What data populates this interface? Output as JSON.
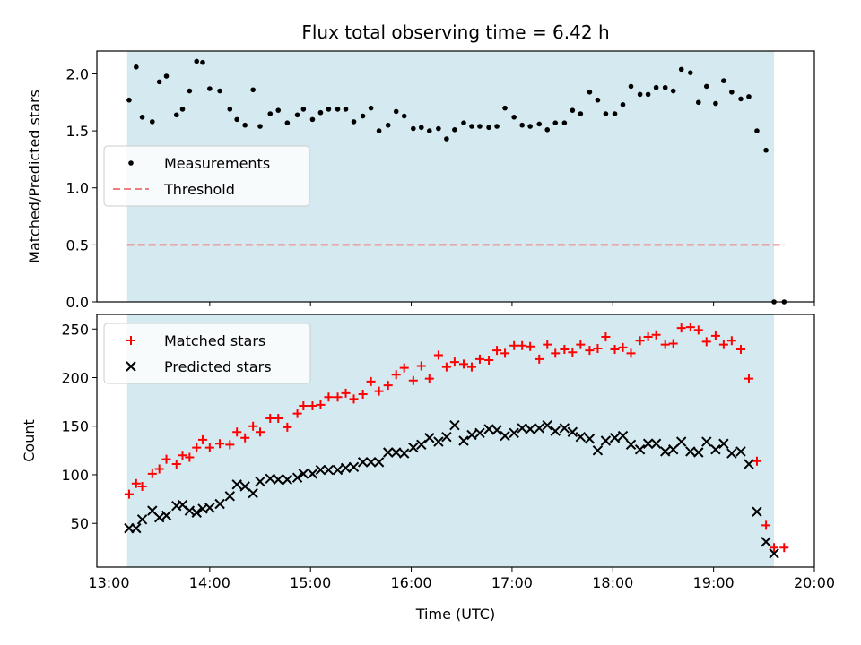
{
  "title": "Flux total observing time = 6.42 h",
  "x_axis_label": "Time (UTC)",
  "x_ticks": [
    "13:00",
    "14:00",
    "15:00",
    "16:00",
    "17:00",
    "18:00",
    "19:00",
    "20:00"
  ],
  "colors": {
    "observing_window": "#d4eaf0",
    "measurements": "#000000",
    "threshold": "#f08080",
    "matched": "#ff0000",
    "predicted": "#000000"
  },
  "chart_data": [
    {
      "type": "scatter",
      "ylabel": "Matched/Predicted stars",
      "xlim": [
        12.88,
        20.0
      ],
      "ylim": [
        0.0,
        2.2
      ],
      "yticks": [
        "0.0",
        "0.5",
        "1.0",
        "1.5",
        "2.0"
      ],
      "shaded_span": [
        13.18,
        19.6
      ],
      "legend": {
        "placement": "center-left",
        "entries": [
          "Measurements",
          "Threshold"
        ]
      },
      "threshold": {
        "name": "Threshold",
        "value": 0.5,
        "x_range": [
          13.18,
          19.7
        ],
        "style": "dashed"
      },
      "series": [
        {
          "name": "Measurements",
          "marker": "dot",
          "x": [
            13.2,
            13.27,
            13.33,
            13.43,
            13.5,
            13.57,
            13.67,
            13.73,
            13.8,
            13.87,
            13.93,
            14.0,
            14.1,
            14.2,
            14.27,
            14.35,
            14.43,
            14.5,
            14.6,
            14.68,
            14.77,
            14.87,
            14.93,
            15.02,
            15.1,
            15.18,
            15.27,
            15.35,
            15.43,
            15.52,
            15.6,
            15.68,
            15.77,
            15.85,
            15.93,
            16.02,
            16.1,
            16.18,
            16.27,
            16.35,
            16.43,
            16.52,
            16.6,
            16.68,
            16.77,
            16.85,
            16.93,
            17.02,
            17.1,
            17.18,
            17.27,
            17.35,
            17.43,
            17.52,
            17.6,
            17.68,
            17.77,
            17.85,
            17.93,
            18.02,
            18.1,
            18.18,
            18.27,
            18.35,
            18.43,
            18.52,
            18.6,
            18.68,
            18.77,
            18.85,
            18.93,
            19.02,
            19.1,
            19.18,
            19.27,
            19.35,
            19.43,
            19.52,
            19.6,
            19.7
          ],
          "y": [
            1.77,
            2.06,
            1.62,
            1.58,
            1.93,
            1.98,
            1.64,
            1.69,
            1.85,
            2.11,
            2.1,
            1.87,
            1.85,
            1.69,
            1.6,
            1.55,
            1.86,
            1.54,
            1.65,
            1.68,
            1.57,
            1.64,
            1.69,
            1.6,
            1.66,
            1.69,
            1.69,
            1.69,
            1.58,
            1.63,
            1.7,
            1.5,
            1.55,
            1.67,
            1.63,
            1.52,
            1.53,
            1.5,
            1.52,
            1.43,
            1.51,
            1.57,
            1.54,
            1.54,
            1.53,
            1.54,
            1.7,
            1.62,
            1.55,
            1.54,
            1.56,
            1.51,
            1.57,
            1.57,
            1.68,
            1.65,
            1.84,
            1.77,
            1.65,
            1.65,
            1.73,
            1.89,
            1.82,
            1.82,
            1.88,
            1.88,
            1.85,
            2.04,
            2.01,
            1.75,
            1.89,
            1.74,
            1.94,
            1.84,
            1.78,
            1.8,
            1.5,
            1.33,
            0.0,
            0.0
          ]
        }
      ]
    },
    {
      "type": "scatter",
      "ylabel": "Count",
      "xlabel": "Time (UTC)",
      "xlim": [
        12.88,
        20.0
      ],
      "ylim": [
        5,
        265
      ],
      "yticks": [
        "50",
        "100",
        "150",
        "200",
        "250"
      ],
      "shaded_span": [
        13.18,
        19.6
      ],
      "legend": {
        "placement": "top-left",
        "entries": [
          "Matched stars",
          "Predicted stars"
        ]
      },
      "series": [
        {
          "name": "Matched stars",
          "marker": "plus",
          "x": [
            13.2,
            13.27,
            13.33,
            13.43,
            13.5,
            13.57,
            13.67,
            13.73,
            13.8,
            13.87,
            13.93,
            14.0,
            14.1,
            14.2,
            14.27,
            14.35,
            14.43,
            14.5,
            14.6,
            14.68,
            14.77,
            14.87,
            14.93,
            15.02,
            15.1,
            15.18,
            15.27,
            15.35,
            15.43,
            15.52,
            15.6,
            15.68,
            15.77,
            15.85,
            15.93,
            16.02,
            16.1,
            16.18,
            16.27,
            16.35,
            16.43,
            16.52,
            16.6,
            16.68,
            16.77,
            16.85,
            16.93,
            17.02,
            17.1,
            17.18,
            17.27,
            17.35,
            17.43,
            17.52,
            17.6,
            17.68,
            17.77,
            17.85,
            17.93,
            18.02,
            18.1,
            18.18,
            18.27,
            18.35,
            18.43,
            18.52,
            18.6,
            18.68,
            18.77,
            18.85,
            18.93,
            19.02,
            19.1,
            19.18,
            19.27,
            19.35,
            19.43,
            19.52,
            19.6,
            19.7
          ],
          "y": [
            80,
            91,
            88,
            101,
            106,
            116,
            111,
            120,
            118,
            128,
            136,
            128,
            132,
            131,
            144,
            138,
            150,
            144,
            158,
            158,
            149,
            163,
            171,
            171,
            172,
            180,
            180,
            184,
            178,
            183,
            196,
            186,
            192,
            203,
            210,
            197,
            212,
            199,
            223,
            211,
            216,
            214,
            211,
            219,
            218,
            228,
            225,
            233,
            233,
            232,
            219,
            234,
            225,
            229,
            226,
            234,
            228,
            230,
            242,
            229,
            231,
            225,
            238,
            242,
            244,
            234,
            235,
            251,
            252,
            249,
            237,
            243,
            234,
            238,
            229,
            199,
            114,
            48,
            25,
            25
          ]
        },
        {
          "name": "Predicted stars",
          "marker": "x",
          "x": [
            13.2,
            13.27,
            13.33,
            13.43,
            13.5,
            13.57,
            13.67,
            13.73,
            13.8,
            13.87,
            13.93,
            14.0,
            14.1,
            14.2,
            14.27,
            14.35,
            14.43,
            14.5,
            14.6,
            14.68,
            14.77,
            14.87,
            14.93,
            15.02,
            15.1,
            15.18,
            15.27,
            15.35,
            15.43,
            15.52,
            15.6,
            15.68,
            15.77,
            15.85,
            15.93,
            16.02,
            16.1,
            16.18,
            16.27,
            16.35,
            16.43,
            16.52,
            16.6,
            16.68,
            16.77,
            16.85,
            16.93,
            17.02,
            17.1,
            17.18,
            17.27,
            17.35,
            17.43,
            17.52,
            17.6,
            17.68,
            17.77,
            17.85,
            17.93,
            18.02,
            18.1,
            18.18,
            18.27,
            18.35,
            18.43,
            18.52,
            18.6,
            18.68,
            18.77,
            18.85,
            18.93,
            19.02,
            19.1,
            19.18,
            19.27,
            19.35,
            19.43,
            19.52,
            19.6
          ],
          "y": [
            45,
            45,
            54,
            63,
            56,
            58,
            68,
            69,
            63,
            61,
            65,
            66,
            70,
            78,
            90,
            88,
            81,
            93,
            96,
            95,
            95,
            97,
            101,
            101,
            105,
            105,
            105,
            107,
            108,
            113,
            113,
            113,
            123,
            123,
            122,
            128,
            131,
            138,
            134,
            139,
            151,
            135,
            141,
            143,
            147,
            146,
            140,
            143,
            148,
            147,
            148,
            151,
            145,
            148,
            144,
            139,
            137,
            125,
            135,
            138,
            140,
            131,
            126,
            132,
            132,
            124,
            126,
            134,
            124,
            123,
            134,
            126,
            132,
            122,
            124,
            111,
            62,
            31,
            19
          ]
        }
      ]
    }
  ]
}
